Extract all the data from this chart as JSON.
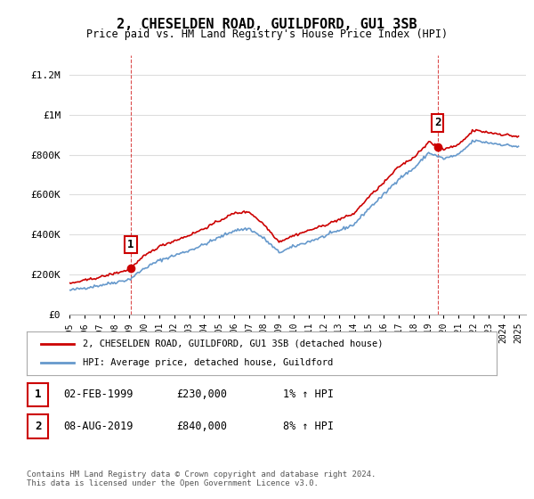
{
  "title": "2, CHESELDEN ROAD, GUILDFORD, GU1 3SB",
  "subtitle": "Price paid vs. HM Land Registry's House Price Index (HPI)",
  "ylabel_ticks": [
    "£0",
    "£200K",
    "£400K",
    "£600K",
    "£800K",
    "£1M",
    "£1.2M"
  ],
  "ytick_vals": [
    0,
    200000,
    400000,
    600000,
    800000,
    1000000,
    1200000
  ],
  "ylim": [
    0,
    1300000
  ],
  "xlim_start": 1995.0,
  "xlim_end": 2025.5,
  "sale1_x": 1999.085,
  "sale1_y": 230000,
  "sale1_label": "1",
  "sale2_x": 2019.587,
  "sale2_y": 840000,
  "sale2_label": "2",
  "hpi_color": "#6699cc",
  "price_color": "#cc0000",
  "dashed_color": "#cc0000",
  "background_color": "#ffffff",
  "grid_color": "#dddddd",
  "legend1": "2, CHESELDEN ROAD, GUILDFORD, GU1 3SB (detached house)",
  "legend2": "HPI: Average price, detached house, Guildford",
  "table_rows": [
    [
      "1",
      "02-FEB-1999",
      "£230,000",
      "1% ↑ HPI"
    ],
    [
      "2",
      "08-AUG-2019",
      "£840,000",
      "8% ↑ HPI"
    ]
  ],
  "footer": "Contains HM Land Registry data © Crown copyright and database right 2024.\nThis data is licensed under the Open Government Licence v3.0.",
  "xtick_years": [
    1995,
    1996,
    1997,
    1998,
    1999,
    2000,
    2001,
    2002,
    2003,
    2004,
    2005,
    2006,
    2007,
    2008,
    2009,
    2010,
    2011,
    2012,
    2013,
    2014,
    2015,
    2016,
    2017,
    2018,
    2019,
    2020,
    2021,
    2022,
    2023,
    2024,
    2025
  ]
}
